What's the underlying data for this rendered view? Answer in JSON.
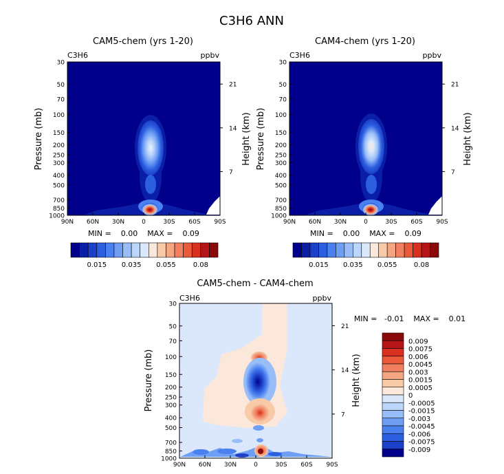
{
  "figure": {
    "title": "C3H6 ANN"
  },
  "chart_data": [
    {
      "type": "heatmap",
      "title": "CAM5-chem (yrs 1-20)",
      "variable": "C3H6",
      "units": "ppbv",
      "ylabel": "Pressure (mb)",
      "ylabel_right": "Height (km)",
      "xticks": [
        "90N",
        "60N",
        "30N",
        "0",
        "30S",
        "60S",
        "90S"
      ],
      "x_values": [
        90,
        60,
        30,
        0,
        -30,
        -60,
        -90
      ],
      "yticks": [
        "30",
        "50",
        "70",
        "100",
        "150",
        "200",
        "250",
        "300",
        "400",
        "500",
        "700",
        "850",
        "1000"
      ],
      "y_values": [
        30,
        50,
        70,
        100,
        150,
        200,
        250,
        300,
        400,
        500,
        700,
        850,
        1000
      ],
      "yticks_right": [
        "21",
        "14",
        "7"
      ],
      "y_right_values": [
        21,
        14,
        7
      ],
      "ylim": [
        1000,
        30
      ],
      "y_scale": "log",
      "stats": "MIN =    0.00    MAX =    0.09",
      "min": 0.0,
      "max": 0.09,
      "colorbar_labels": [
        "0.015",
        "0.035",
        "0.055",
        "0.08"
      ],
      "colorbar_colors": [
        "#00008a",
        "#0a1ea8",
        "#1c40c8",
        "#2c5fe0",
        "#4a80f0",
        "#6f9ef5",
        "#98bdf8",
        "#bcd5fa",
        "#dbe8fb",
        "#fbe8da",
        "#f8caa8",
        "#f4a582",
        "#f08060",
        "#ea5a3a",
        "#d93020",
        "#b51418",
        "#8a0a0a"
      ],
      "features": [
        {
          "lat": 5,
          "p_top": 105,
          "p_bottom": 500,
          "peak": 0.04,
          "description_value": "upper-troposphere maximum near equator"
        },
        {
          "lat": 5,
          "p_top": 850,
          "p_bottom": 1000,
          "peak": 0.09,
          "description_value": "surface maximum"
        }
      ]
    },
    {
      "type": "heatmap",
      "title": "CAM4-chem (yrs 1-20)",
      "variable": "C3H6",
      "units": "ppbv",
      "ylabel": "Pressure (mb)",
      "ylabel_right": "Height (km)",
      "xticks": [
        "90N",
        "60N",
        "30N",
        "0",
        "30S",
        "60S",
        "90S"
      ],
      "x_values": [
        90,
        60,
        30,
        0,
        -30,
        -60,
        -90
      ],
      "yticks": [
        "30",
        "50",
        "70",
        "100",
        "150",
        "200",
        "250",
        "300",
        "400",
        "500",
        "700",
        "850",
        "1000"
      ],
      "y_values": [
        30,
        50,
        70,
        100,
        150,
        200,
        250,
        300,
        400,
        500,
        700,
        850,
        1000
      ],
      "yticks_right": [
        "21",
        "14",
        "7"
      ],
      "y_right_values": [
        21,
        14,
        7
      ],
      "ylim": [
        1000,
        30
      ],
      "y_scale": "log",
      "stats": "MIN =    0.00    MAX =    0.09",
      "min": 0.0,
      "max": 0.09,
      "colorbar_labels": [
        "0.015",
        "0.035",
        "0.055",
        "0.08"
      ],
      "colorbar_colors": [
        "#00008a",
        "#0a1ea8",
        "#1c40c8",
        "#2c5fe0",
        "#4a80f0",
        "#6f9ef5",
        "#98bdf8",
        "#bcd5fa",
        "#dbe8fb",
        "#fbe8da",
        "#f8caa8",
        "#f4a582",
        "#f08060",
        "#ea5a3a",
        "#d93020",
        "#b51418",
        "#8a0a0a"
      ],
      "features": [
        {
          "lat": 5,
          "p_top": 105,
          "p_bottom": 500,
          "peak": 0.045,
          "description_value": "upper-troposphere maximum near equator"
        },
        {
          "lat": 5,
          "p_top": 850,
          "p_bottom": 1000,
          "peak": 0.09,
          "description_value": "surface maximum"
        }
      ]
    },
    {
      "type": "heatmap",
      "title": "CAM5-chem - CAM4-chem",
      "variable": "C3H6",
      "units": "ppbv",
      "ylabel": "Pressure (mb)",
      "ylabel_right": "Height (km)",
      "xticks": [
        "90N",
        "60N",
        "30N",
        "0",
        "30S",
        "60S",
        "90S"
      ],
      "x_values": [
        90,
        60,
        30,
        0,
        -30,
        -60,
        -90
      ],
      "yticks": [
        "30",
        "50",
        "70",
        "100",
        "150",
        "200",
        "250",
        "300",
        "400",
        "500",
        "700",
        "850",
        "1000"
      ],
      "y_values": [
        30,
        50,
        70,
        100,
        150,
        200,
        250,
        300,
        400,
        500,
        700,
        850,
        1000
      ],
      "yticks_right": [
        "21",
        "14",
        "7"
      ],
      "y_right_values": [
        21,
        14,
        7
      ],
      "ylim": [
        1000,
        30
      ],
      "y_scale": "log",
      "stats": "MIN =   -0.01    MAX =    0.01",
      "min": -0.01,
      "max": 0.01,
      "colorbar_labels": [
        "0.009",
        "0.0075",
        "0.006",
        "0.0045",
        "0.003",
        "0.0015",
        "0.0005",
        "0",
        "-0.0005",
        "-0.0015",
        "-0.003",
        "-0.0045",
        "-0.006",
        "-0.0075",
        "-0.009"
      ],
      "colorbar_colors": [
        "#8a0a0a",
        "#b51418",
        "#d93020",
        "#ea5a3a",
        "#f08060",
        "#f4a582",
        "#f8caa8",
        "#fbe8da",
        "#dbe8fb",
        "#bcd5fa",
        "#98bdf8",
        "#6f9ef5",
        "#4a80f0",
        "#2c5fe0",
        "#1c40c8",
        "#00008a"
      ]
    }
  ]
}
